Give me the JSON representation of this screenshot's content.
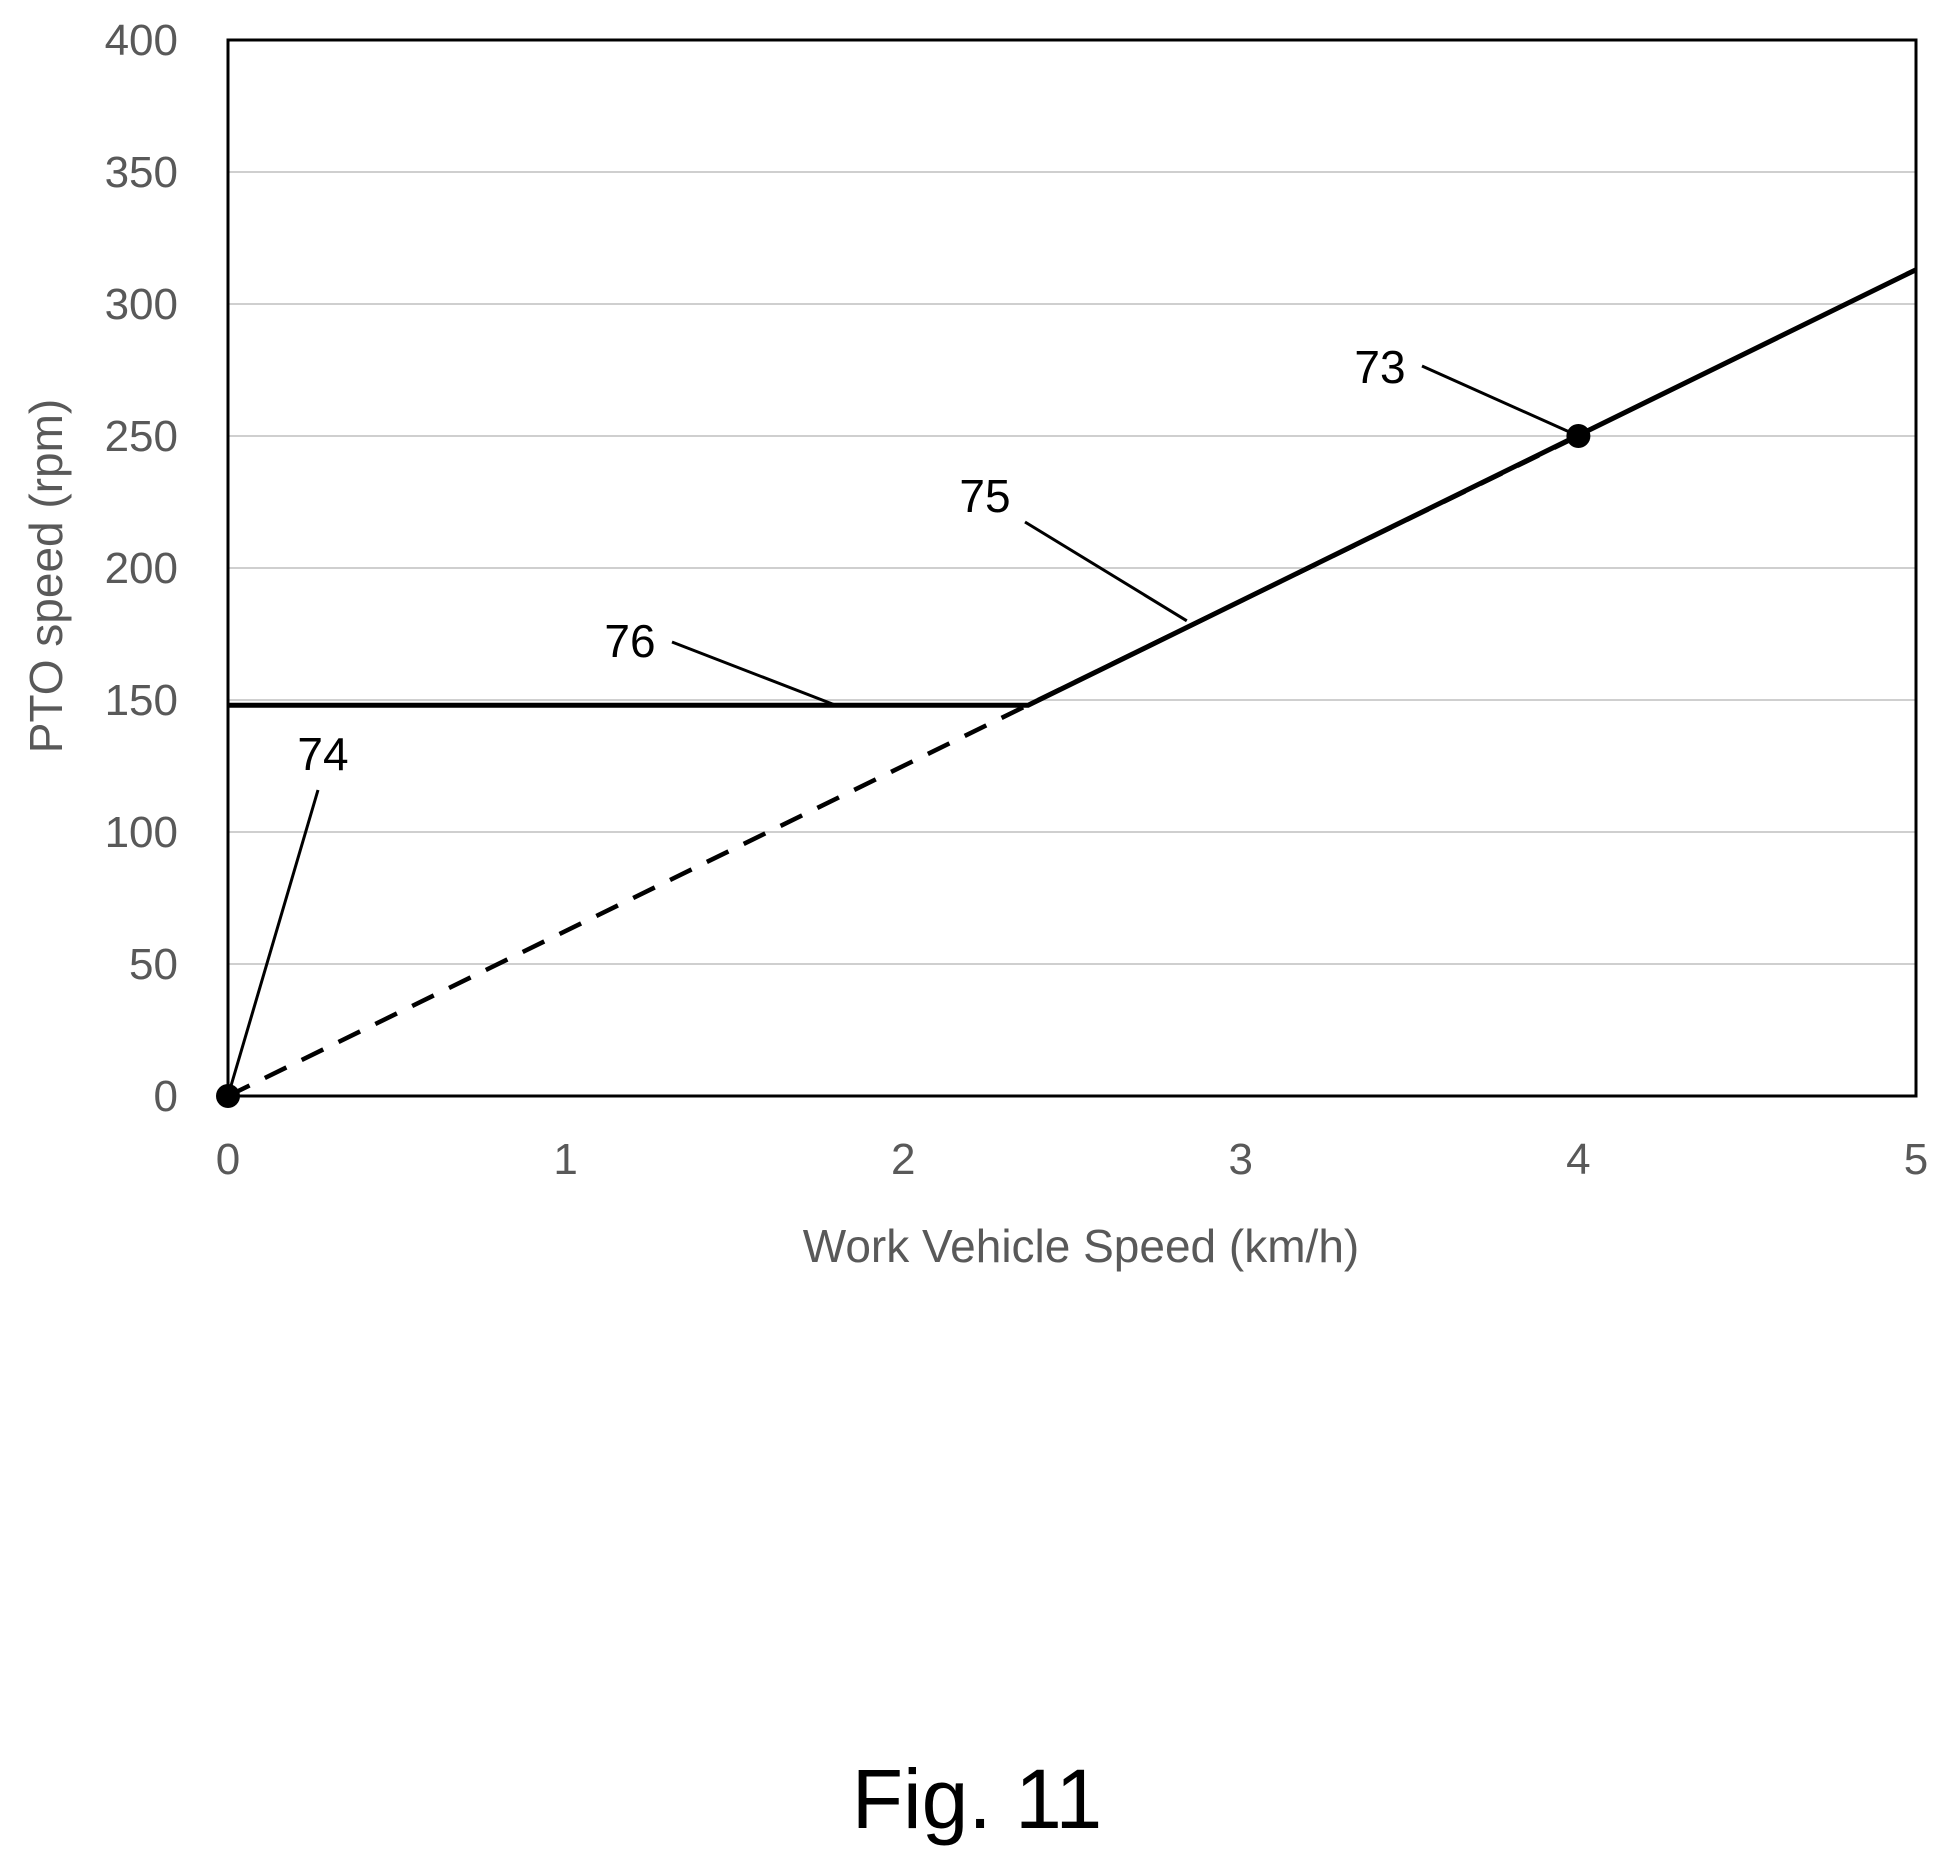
{
  "chart_data": {
    "type": "line",
    "title": "",
    "xlabel": "Work Vehicle Speed (km/h)",
    "ylabel": "PTO speed (rpm)",
    "xlim": [
      0,
      5
    ],
    "ylim": [
      0,
      400
    ],
    "x_ticks": [
      0,
      1,
      2,
      3,
      4,
      5
    ],
    "y_ticks": [
      0,
      50,
      100,
      150,
      200,
      250,
      300,
      350,
      400
    ],
    "x_tick_labels": [
      "0",
      "1",
      "2",
      "3",
      "4",
      "5"
    ],
    "y_tick_labels": [
      "0",
      "50",
      "100",
      "150",
      "200",
      "250",
      "300",
      "350",
      "400"
    ],
    "grid": "horizontal",
    "legend": "none",
    "series": [
      {
        "style": "solid",
        "color": "#000000",
        "points": [
          [
            0,
            148
          ],
          [
            2.37,
            148
          ],
          [
            5,
            313
          ]
        ]
      },
      {
        "style": "dashed",
        "color": "#000000",
        "points": [
          [
            0,
            0
          ],
          [
            4,
            250
          ]
        ]
      }
    ],
    "markers": [
      {
        "x": 0,
        "y": 0
      },
      {
        "x": 4,
        "y": 250
      }
    ],
    "annotations": [
      {
        "text": "73",
        "target": [
          4,
          250
        ]
      },
      {
        "text": "74",
        "target": [
          0,
          0
        ]
      },
      {
        "text": "75",
        "target": [
          2.84,
          180
        ]
      },
      {
        "text": "76",
        "target": [
          1.8,
          148
        ]
      }
    ],
    "caption": "Fig. 11"
  }
}
